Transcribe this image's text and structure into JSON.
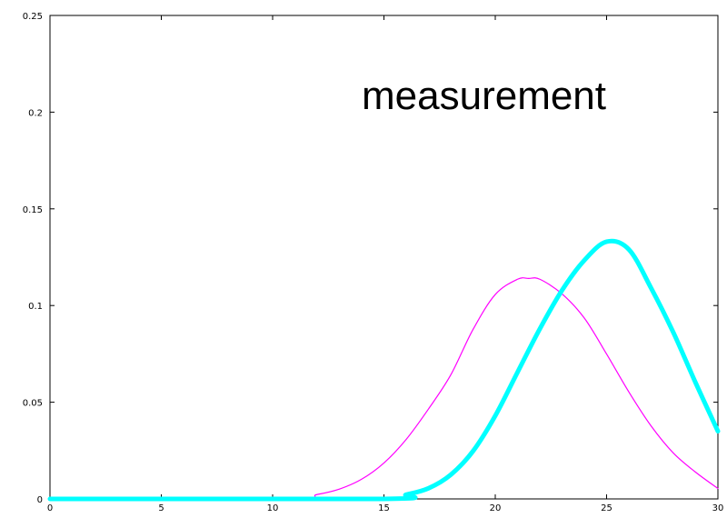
{
  "chart_data": {
    "type": "line",
    "title": "",
    "xlabel": "",
    "ylabel": "",
    "xlim": [
      0,
      30
    ],
    "ylim": [
      0,
      0.25
    ],
    "xticks": [
      0,
      5,
      10,
      15,
      20,
      25,
      30
    ],
    "xtick_labels": [
      "0",
      "5",
      "10",
      "15",
      "20",
      "25",
      "30"
    ],
    "yticks": [
      0,
      0.05,
      0.1,
      0.15,
      0.2,
      0.25
    ],
    "ytick_labels": [
      "0",
      "0.05",
      "0.1",
      "0.15",
      "0.2",
      "0.25"
    ],
    "grid": false,
    "annotation": "measurement",
    "series": [
      {
        "color": "#ff00ff",
        "line_width": "thin",
        "x": [
          0,
          10.6,
          12,
          13,
          14,
          15,
          16,
          17,
          18,
          19,
          20,
          21,
          21.5,
          22,
          23,
          24,
          25,
          26,
          27,
          28,
          29,
          30
        ],
        "values": [
          0,
          0,
          0.0023,
          0.0051,
          0.0102,
          0.0186,
          0.0308,
          0.0465,
          0.0641,
          0.0876,
          0.1057,
          0.1136,
          0.114,
          0.1136,
          0.106,
          0.0935,
          0.0749,
          0.0553,
          0.0377,
          0.0237,
          0.0138,
          0.0054
        ]
      },
      {
        "color": "#00ffff",
        "line_width": "thick",
        "x": [
          0,
          15,
          16,
          17,
          18,
          19,
          20,
          21,
          22,
          23,
          24,
          25,
          26,
          27,
          28,
          29,
          30
        ],
        "values": [
          0,
          0,
          0.0022,
          0.0055,
          0.0125,
          0.0247,
          0.043,
          0.0655,
          0.0879,
          0.1079,
          0.1234,
          0.133,
          0.129,
          0.109,
          0.086,
          0.06,
          0.035
        ]
      }
    ]
  }
}
